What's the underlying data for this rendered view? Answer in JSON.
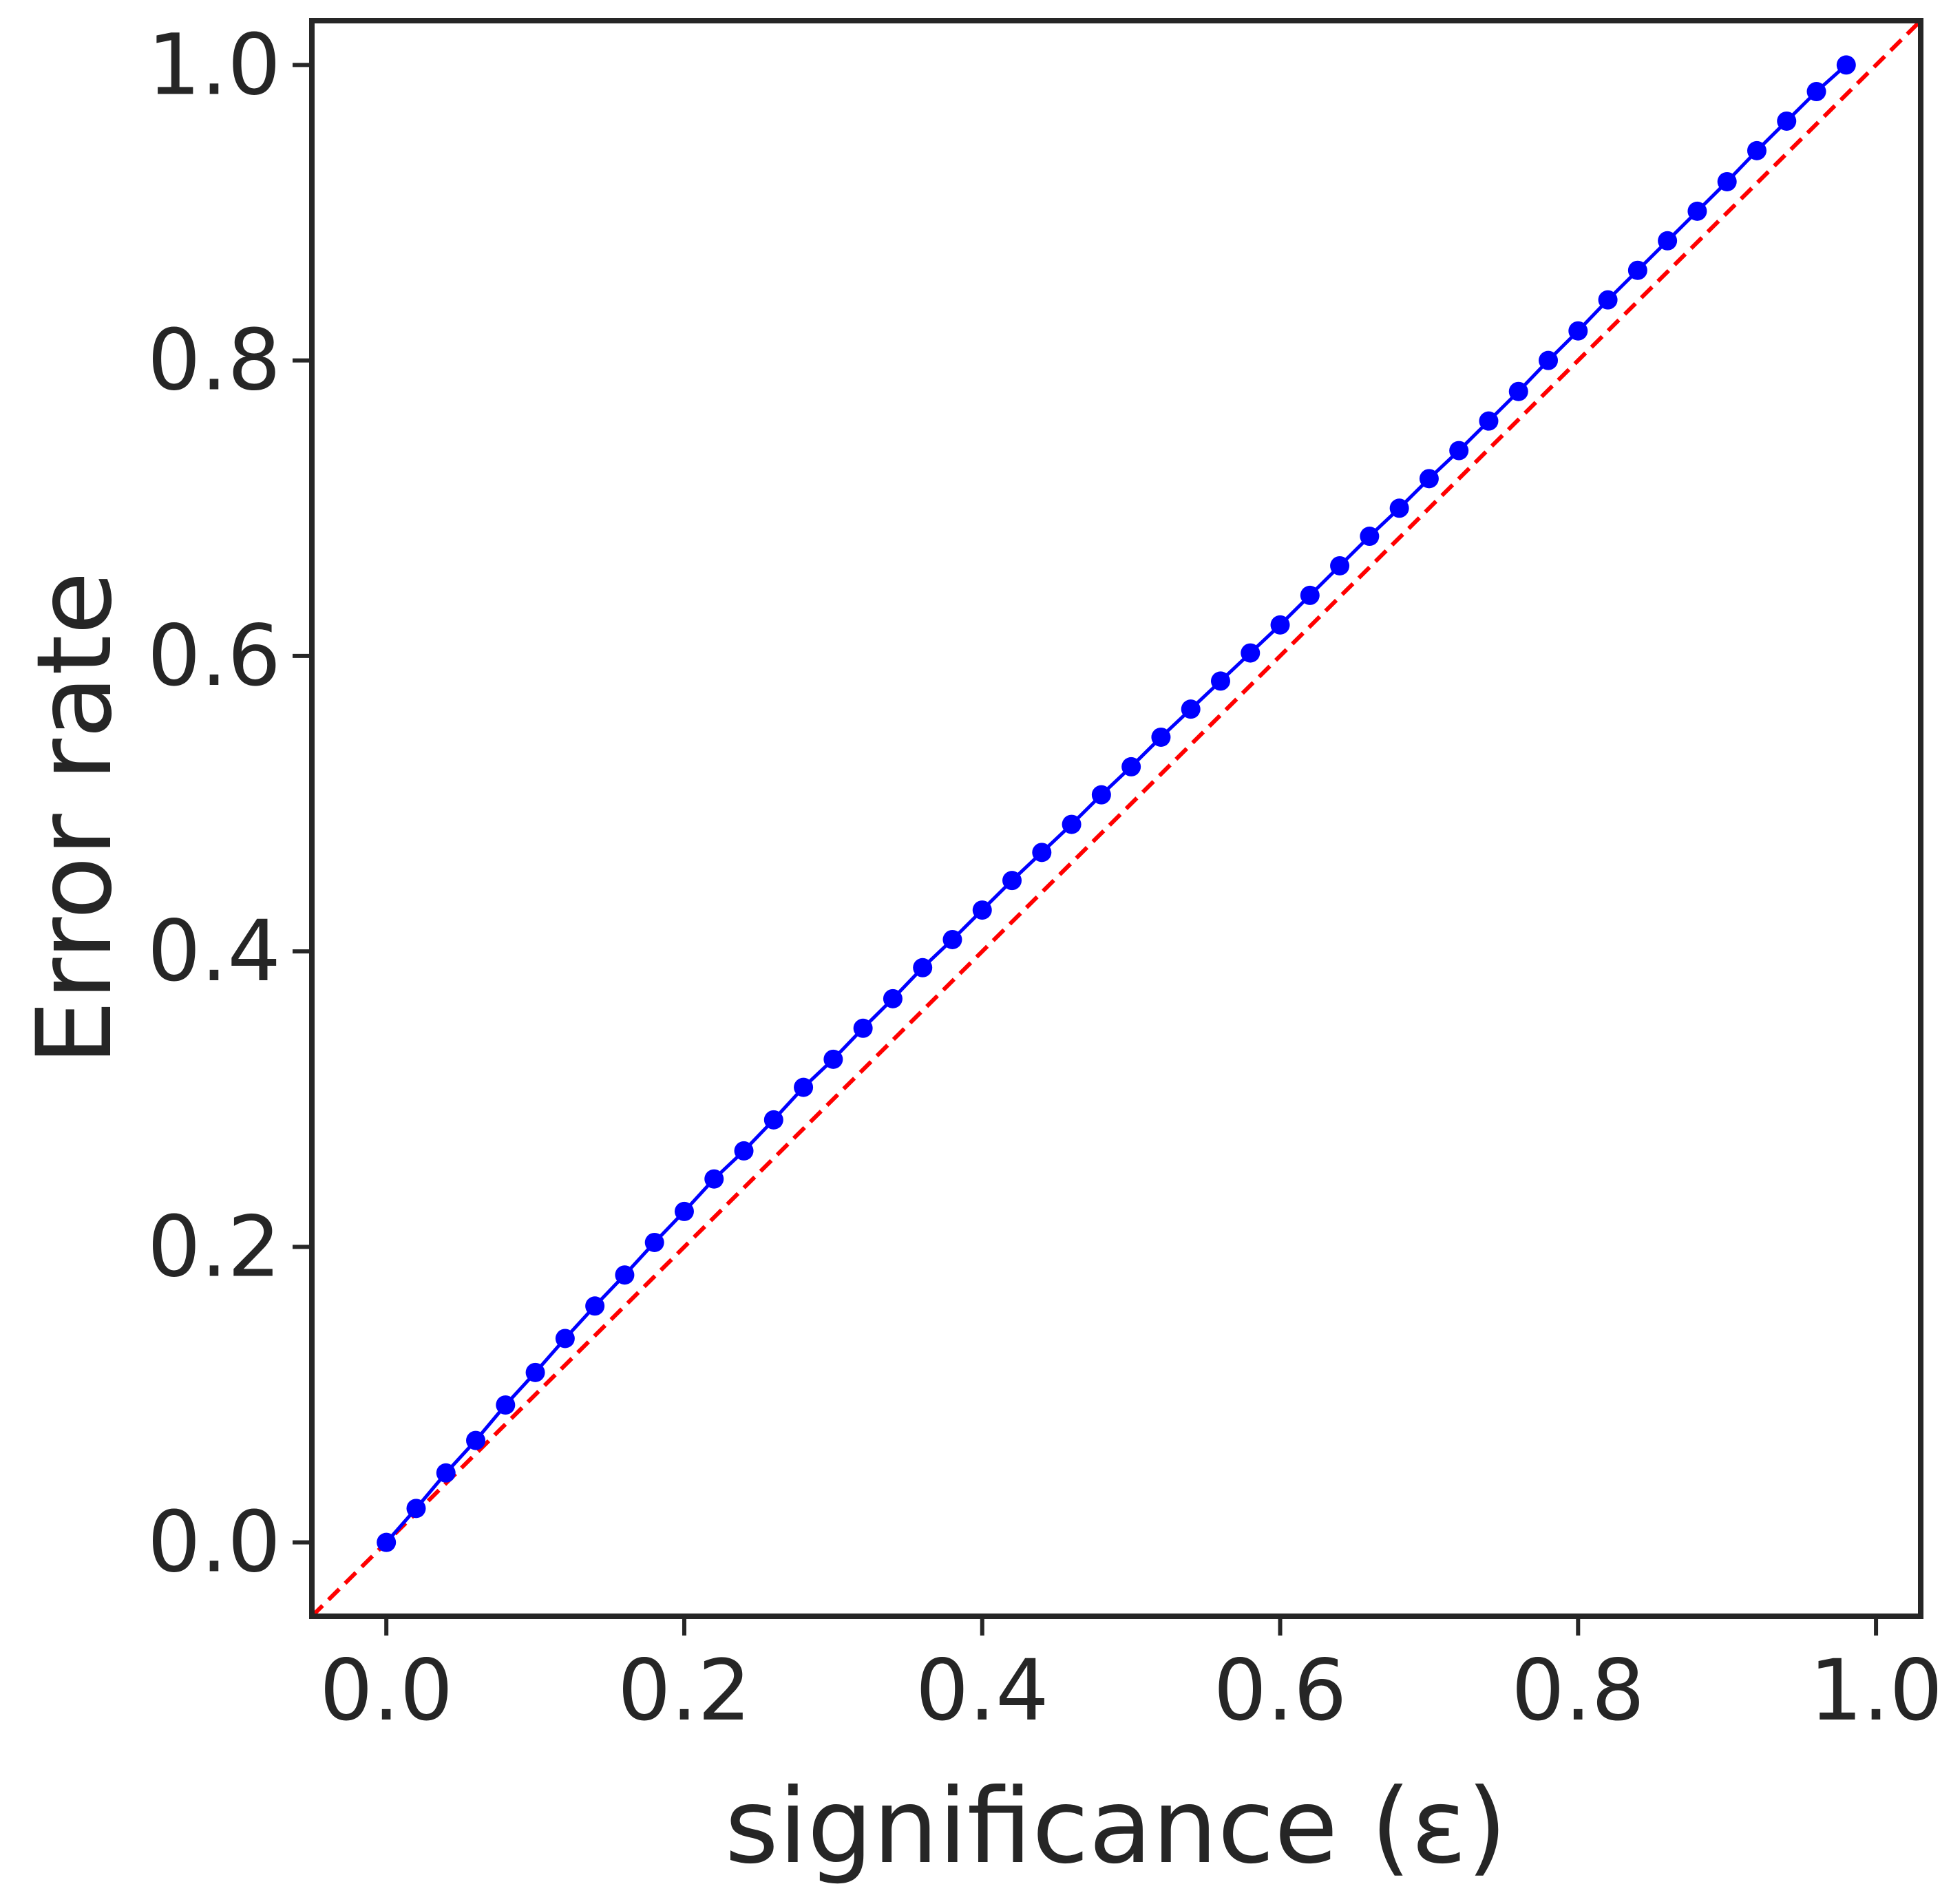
{
  "chart_data": {
    "type": "line",
    "xlabel": "significance (ε)",
    "ylabel": "Error rate",
    "xlim": [
      -0.05,
      1.03
    ],
    "ylim": [
      -0.05,
      1.03
    ],
    "x_ticks": [
      0.0,
      0.2,
      0.4,
      0.6,
      0.8,
      1.0
    ],
    "y_ticks": [
      0.0,
      0.2,
      0.4,
      0.6,
      0.8,
      1.0
    ],
    "x_tick_labels": [
      "0.0",
      "0.2",
      "0.4",
      "0.6",
      "0.8",
      "1.0"
    ],
    "y_tick_labels": [
      "0.0",
      "0.2",
      "0.4",
      "0.6",
      "0.8",
      "1.0"
    ],
    "grid": false,
    "legend": "none",
    "series": [
      {
        "style": "solid line with circle markers",
        "color": "#0000ff",
        "x": [
          0.0,
          0.02,
          0.04,
          0.06,
          0.08,
          0.1,
          0.12,
          0.14,
          0.16,
          0.18,
          0.2,
          0.22,
          0.24,
          0.26,
          0.28,
          0.3,
          0.32,
          0.34,
          0.36,
          0.38,
          0.4,
          0.42,
          0.44,
          0.46,
          0.48,
          0.5,
          0.52,
          0.54,
          0.56,
          0.58,
          0.6,
          0.62,
          0.64,
          0.66,
          0.68,
          0.7,
          0.72,
          0.74,
          0.76,
          0.78,
          0.8,
          0.82,
          0.84,
          0.86,
          0.88,
          0.9,
          0.92,
          0.94,
          0.96,
          0.98
        ],
        "y": [
          0.0,
          0.023,
          0.047,
          0.069,
          0.093,
          0.115,
          0.138,
          0.16,
          0.181,
          0.203,
          0.224,
          0.246,
          0.265,
          0.286,
          0.308,
          0.327,
          0.348,
          0.368,
          0.389,
          0.408,
          0.428,
          0.448,
          0.467,
          0.486,
          0.506,
          0.525,
          0.545,
          0.564,
          0.583,
          0.602,
          0.621,
          0.641,
          0.661,
          0.681,
          0.7,
          0.72,
          0.739,
          0.759,
          0.779,
          0.8,
          0.82,
          0.841,
          0.861,
          0.881,
          0.901,
          0.921,
          0.942,
          0.962,
          0.982,
          1.0
        ]
      },
      {
        "style": "dashed reference line y = x",
        "color": "#ff0000",
        "x": [
          -0.05,
          1.03
        ],
        "y": [
          -0.05,
          1.03
        ]
      }
    ]
  },
  "colors": {
    "axes": "#262626",
    "data_line": "#0000ff",
    "reference_line": "#ff0000",
    "background": "#ffffff"
  }
}
